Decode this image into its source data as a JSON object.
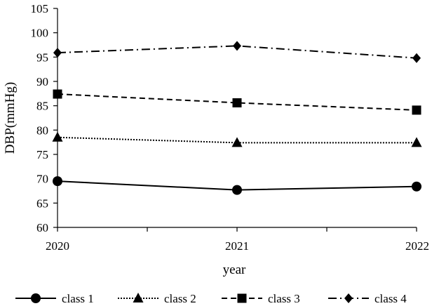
{
  "chart_data": {
    "type": "line",
    "title": "",
    "xlabel": "year",
    "ylabel": "DBP(mmHg)",
    "x": [
      "2020",
      "2021",
      "2022"
    ],
    "yticks": [
      "60",
      "65",
      "70",
      "75",
      "80",
      "85",
      "90",
      "95",
      "100",
      "105"
    ],
    "ylim": [
      60,
      105
    ],
    "grid": false,
    "legend_position": "bottom",
    "series": [
      {
        "name": "class 1",
        "values": [
          69.5,
          67.7,
          68.4
        ],
        "marker": "circle",
        "dash": "solid"
      },
      {
        "name": "class 2",
        "values": [
          78.5,
          77.4,
          77.4
        ],
        "marker": "triangle",
        "dash": "dotted"
      },
      {
        "name": "class 3",
        "values": [
          87.4,
          85.6,
          84.1
        ],
        "marker": "square",
        "dash": "dashed"
      },
      {
        "name": "class 4",
        "values": [
          95.9,
          97.3,
          94.8
        ],
        "marker": "diamond",
        "dash": "dash-dot"
      }
    ]
  }
}
